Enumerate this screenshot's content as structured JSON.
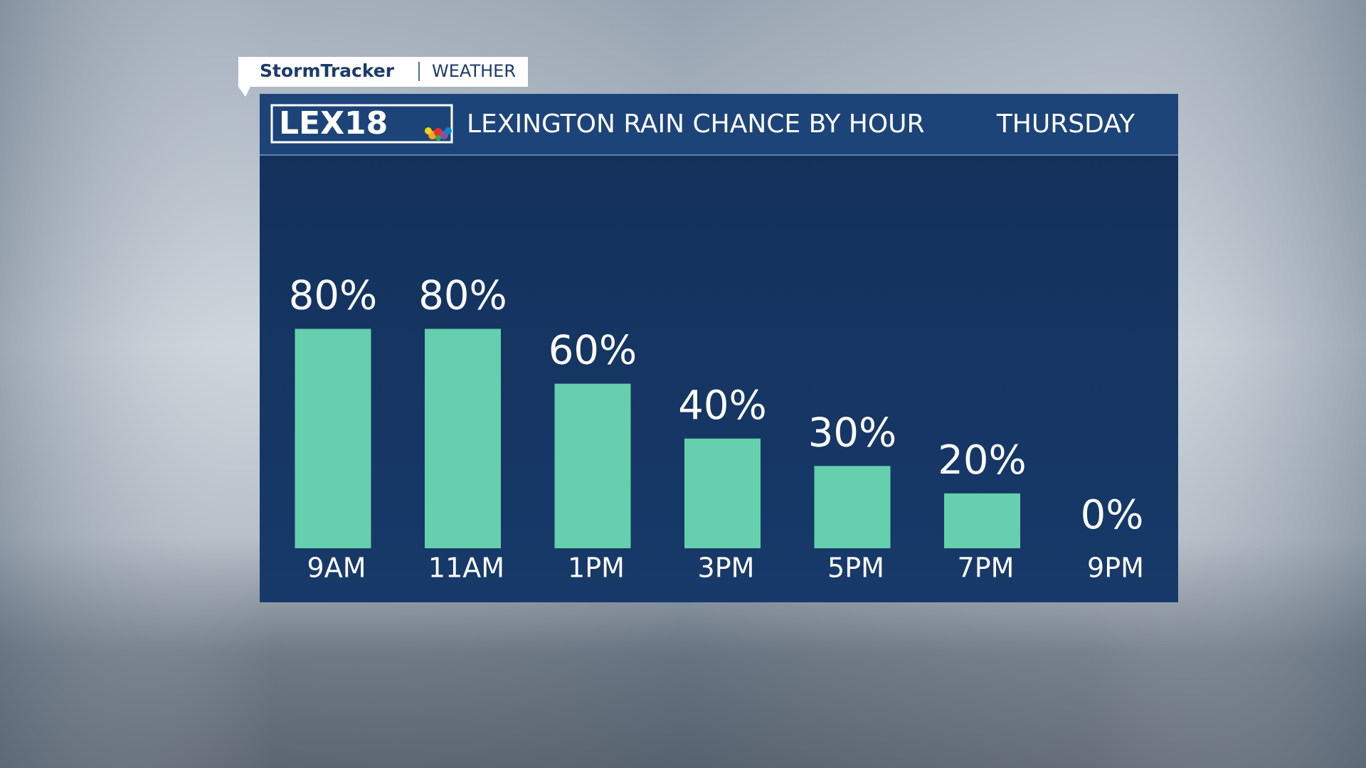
{
  "brand": "StormTracker",
  "section": "WEATHER",
  "logo": "LEX18",
  "chart_data": {
    "type": "bar",
    "title": "LEXINGTON RAIN CHANCE BY HOUR",
    "subtitle": "THURSDAY",
    "categories": [
      "9AM",
      "11AM",
      "1PM",
      "3PM",
      "5PM",
      "7PM",
      "9PM"
    ],
    "values": [
      80,
      80,
      60,
      40,
      30,
      20,
      0
    ],
    "value_labels": [
      "80%",
      "80%",
      "60%",
      "40%",
      "30%",
      "20%",
      "0%"
    ],
    "color": "#66cfad"
  }
}
